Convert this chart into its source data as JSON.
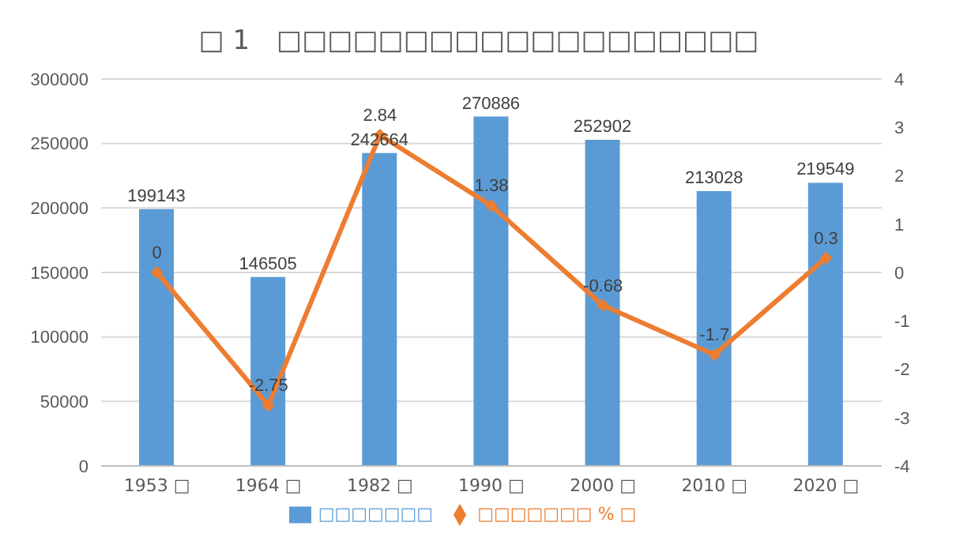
{
  "chart_data": {
    "type": "bar",
    "title": "□ 1　□□□□□□□□□□□□□□□□□□□",
    "categories": [
      "1953 □",
      "1964 □",
      "1982 □",
      "1990 □",
      "2000 □",
      "2010 □",
      "2020 □"
    ],
    "series": [
      {
        "name": "□□□□□□□",
        "color": "#5b9bd5",
        "values": [
          199143,
          146505,
          242664,
          270886,
          252902,
          213028,
          219549
        ]
      },
      {
        "name": "□□□□□□□ % □",
        "type": "line",
        "axis": "y2",
        "color": "#ed7d31",
        "marker": "diamond",
        "values": [
          0,
          -2.75,
          2.84,
          1.38,
          -0.68,
          -1.7,
          0.3
        ]
      }
    ],
    "ylim": [
      0,
      300000
    ],
    "yticks": [
      0,
      50000,
      100000,
      150000,
      200000,
      250000,
      300000
    ],
    "y2lim": [
      -4,
      4
    ],
    "y2ticks": [
      -4,
      -3,
      -2,
      -1,
      0,
      1,
      2,
      3,
      4
    ],
    "grid": "y",
    "legend": "bottom",
    "data_labels": true
  }
}
